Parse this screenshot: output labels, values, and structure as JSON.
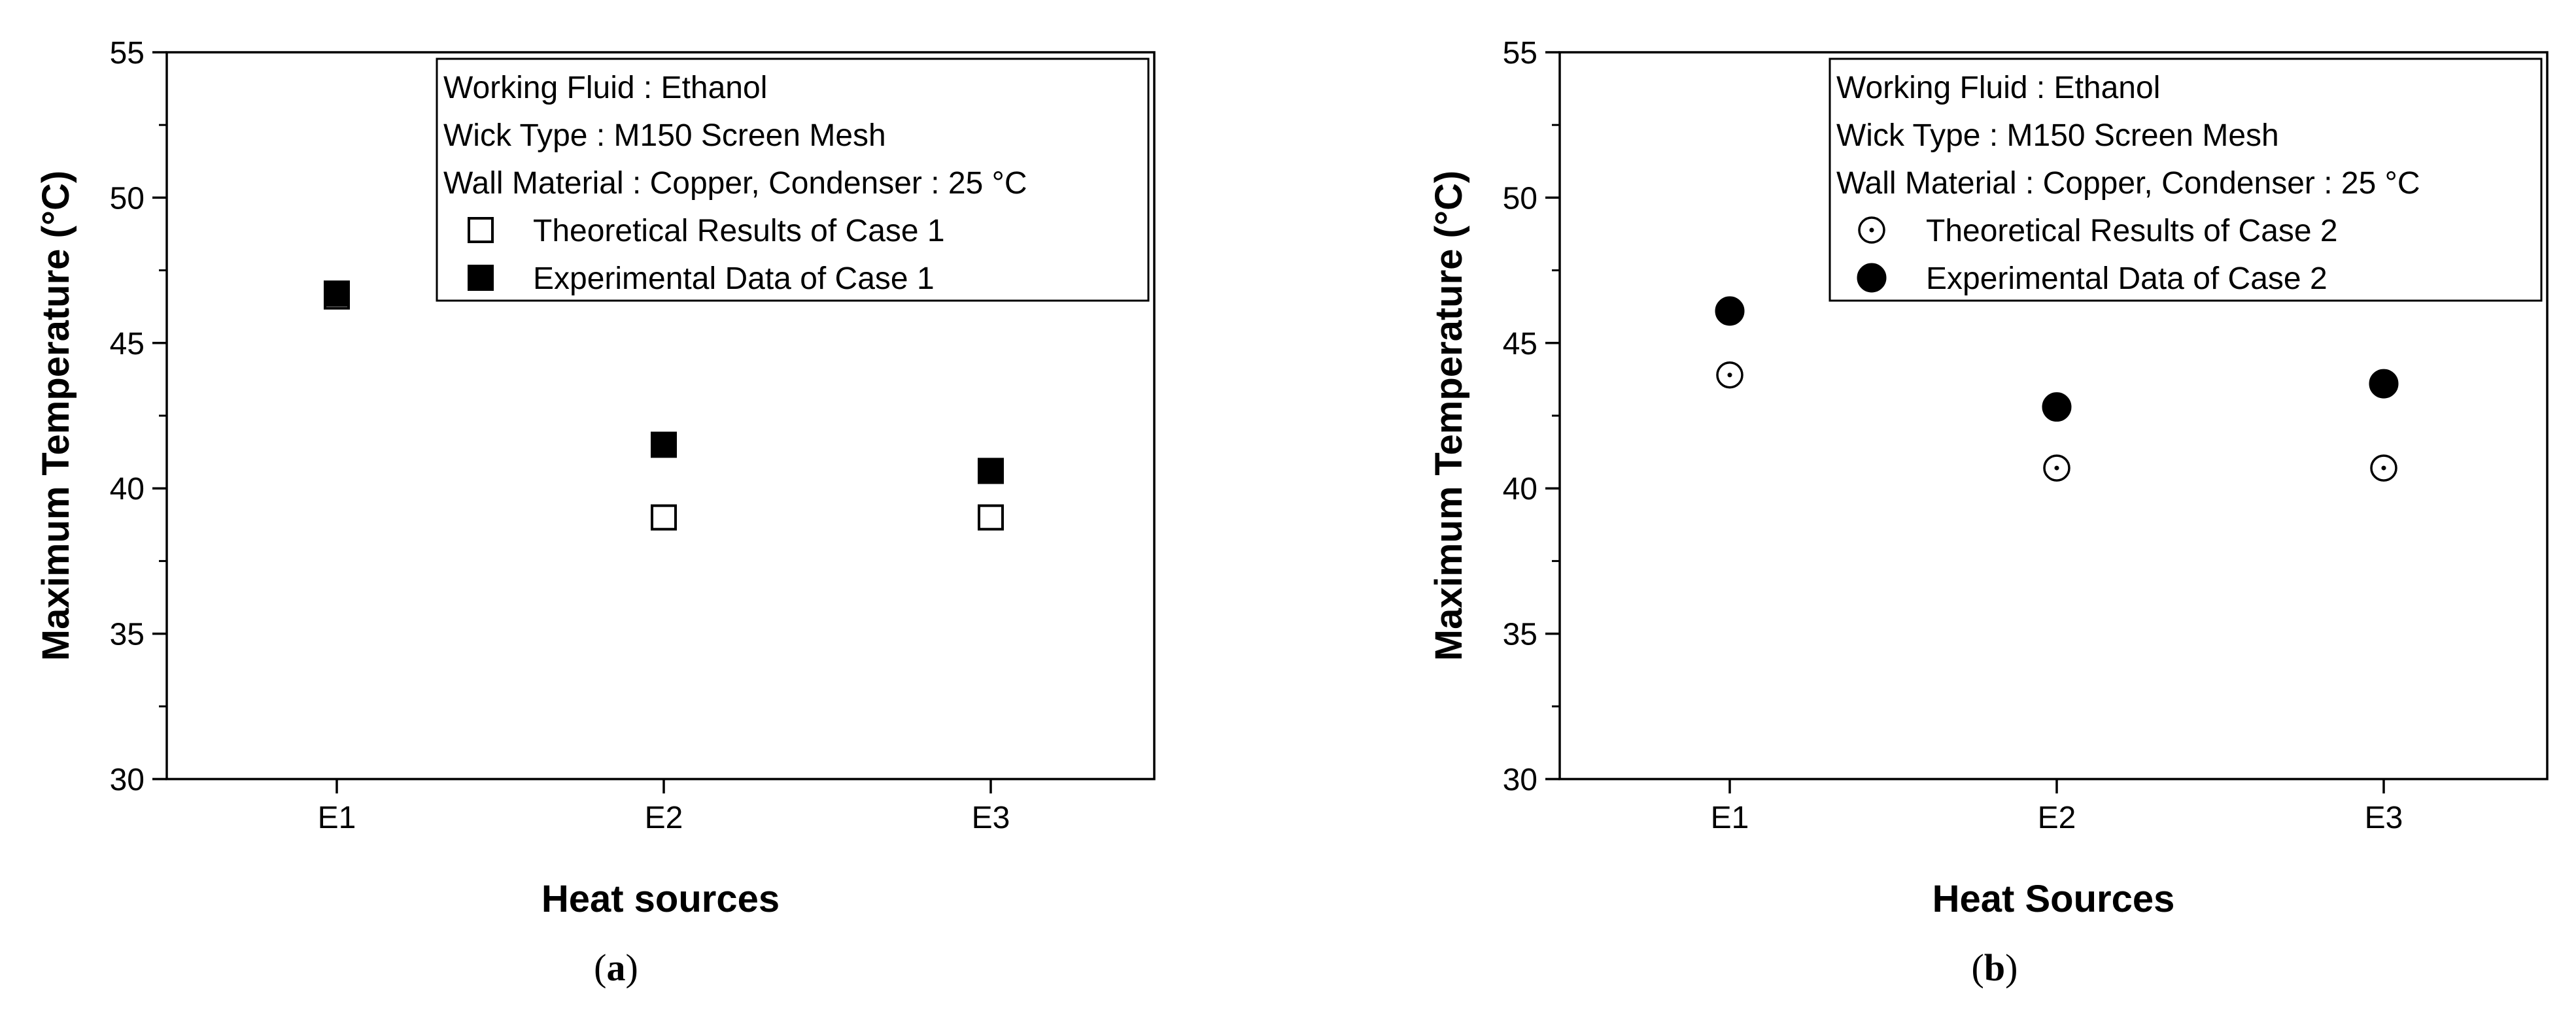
{
  "chart_data": [
    {
      "type": "scatter",
      "panel_label": "(a)",
      "panel_letter": "a",
      "xlabel": "Heat sources",
      "ylabel": "Maximum Temperature (°C)",
      "categories": [
        "E1",
        "E2",
        "E3"
      ],
      "ylim": [
        30,
        55
      ],
      "yticks": [
        "30",
        "35",
        "40",
        "45",
        "50",
        "55"
      ],
      "grid": false,
      "legend_position": "top-right",
      "legend_lines": [
        "Working Fluid : Ethanol",
        "Wick Type : M150 Screen Mesh",
        "Wall Material : Copper, Condenser : 25 °C"
      ],
      "series": [
        {
          "name": "Theoretical Results of Case 1",
          "marker": "square-open",
          "values": [
            46.6,
            39.0,
            39.0
          ]
        },
        {
          "name": "Experimental Data of Case 1",
          "marker": "square-filled",
          "values": [
            46.7,
            41.5,
            40.6
          ]
        }
      ]
    },
    {
      "type": "scatter",
      "panel_label": "(b)",
      "panel_letter": "b",
      "xlabel": "Heat Sources",
      "ylabel": "Maximum Temperature (°C)",
      "categories": [
        "E1",
        "E2",
        "E3"
      ],
      "ylim": [
        30,
        55
      ],
      "yticks": [
        "30",
        "35",
        "40",
        "45",
        "50",
        "55"
      ],
      "grid": false,
      "legend_position": "top-right",
      "legend_lines": [
        "Working Fluid : Ethanol",
        "Wick Type : M150 Screen Mesh",
        "Wall Material : Copper, Condenser : 25 °C"
      ],
      "series": [
        {
          "name": "Theoretical Results of Case 2",
          "marker": "circle-open-dot",
          "values": [
            43.9,
            40.7,
            40.7
          ]
        },
        {
          "name": "Experimental Data of Case 2",
          "marker": "circle-filled",
          "values": [
            46.1,
            42.8,
            43.6
          ]
        }
      ]
    }
  ]
}
